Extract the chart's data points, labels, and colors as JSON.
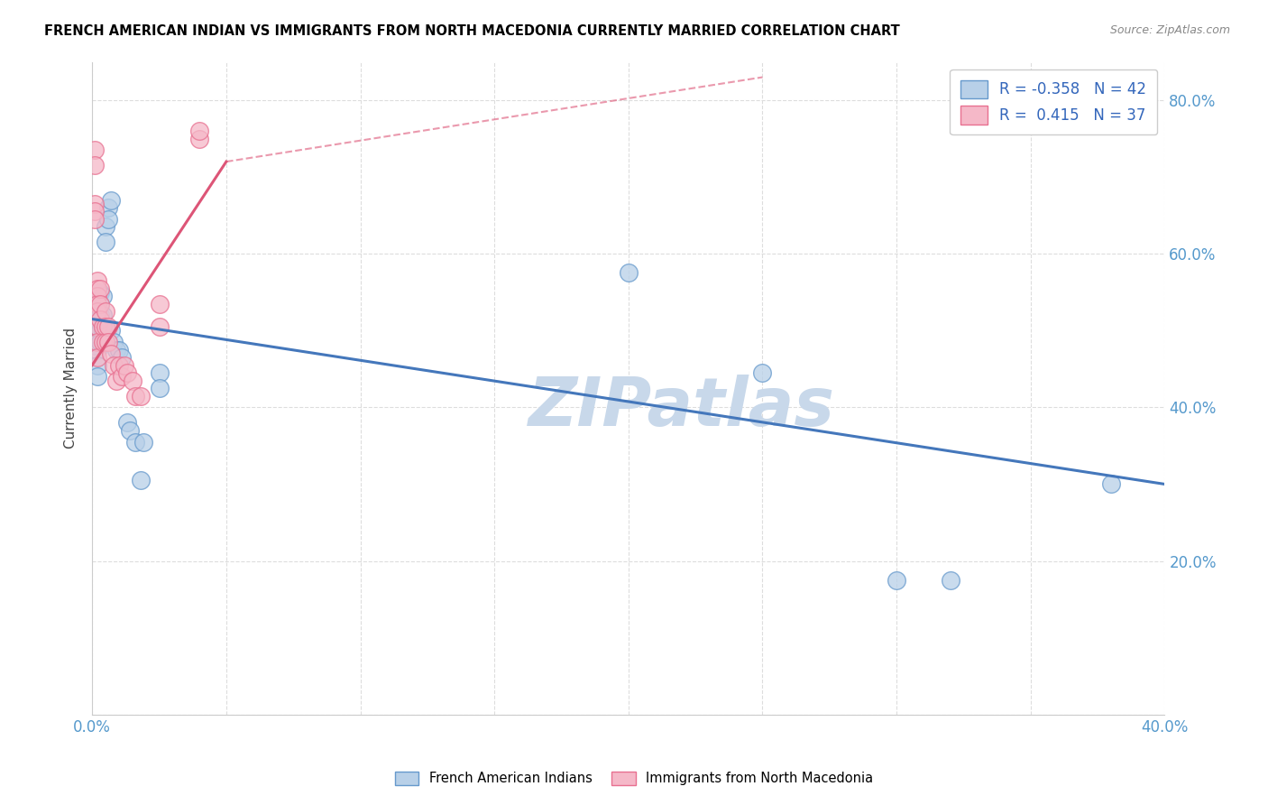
{
  "title": "FRENCH AMERICAN INDIAN VS IMMIGRANTS FROM NORTH MACEDONIA CURRENTLY MARRIED CORRELATION CHART",
  "source": "Source: ZipAtlas.com",
  "ylabel": "Currently Married",
  "xlim": [
    0.0,
    0.4
  ],
  "ylim": [
    0.0,
    0.85
  ],
  "y_ticks": [
    0.0,
    0.2,
    0.4,
    0.6,
    0.8
  ],
  "legend_r_blue": "-0.358",
  "legend_n_blue": "42",
  "legend_r_pink": "0.415",
  "legend_n_pink": "37",
  "blue_fill": "#b8d0e8",
  "pink_fill": "#f5b8c8",
  "blue_edge": "#6699cc",
  "pink_edge": "#e87090",
  "blue_line_color": "#4477bb",
  "pink_line_color": "#dd5577",
  "blue_scatter": [
    [
      0.001,
      0.545
    ],
    [
      0.001,
      0.515
    ],
    [
      0.001,
      0.5
    ],
    [
      0.001,
      0.48
    ],
    [
      0.002,
      0.545
    ],
    [
      0.002,
      0.535
    ],
    [
      0.002,
      0.52
    ],
    [
      0.002,
      0.505
    ],
    [
      0.002,
      0.495
    ],
    [
      0.002,
      0.475
    ],
    [
      0.002,
      0.455
    ],
    [
      0.002,
      0.44
    ],
    [
      0.003,
      0.55
    ],
    [
      0.003,
      0.535
    ],
    [
      0.003,
      0.52
    ],
    [
      0.003,
      0.5
    ],
    [
      0.003,
      0.485
    ],
    [
      0.004,
      0.545
    ],
    [
      0.004,
      0.52
    ],
    [
      0.004,
      0.5
    ],
    [
      0.005,
      0.635
    ],
    [
      0.005,
      0.615
    ],
    [
      0.006,
      0.66
    ],
    [
      0.006,
      0.645
    ],
    [
      0.007,
      0.67
    ],
    [
      0.007,
      0.5
    ],
    [
      0.008,
      0.485
    ],
    [
      0.009,
      0.475
    ],
    [
      0.01,
      0.475
    ],
    [
      0.011,
      0.465
    ],
    [
      0.013,
      0.38
    ],
    [
      0.014,
      0.37
    ],
    [
      0.016,
      0.355
    ],
    [
      0.018,
      0.305
    ],
    [
      0.019,
      0.355
    ],
    [
      0.025,
      0.445
    ],
    [
      0.025,
      0.425
    ],
    [
      0.2,
      0.575
    ],
    [
      0.25,
      0.445
    ],
    [
      0.3,
      0.175
    ],
    [
      0.32,
      0.175
    ],
    [
      0.38,
      0.3
    ]
  ],
  "pink_scatter": [
    [
      0.001,
      0.735
    ],
    [
      0.001,
      0.715
    ],
    [
      0.001,
      0.665
    ],
    [
      0.001,
      0.655
    ],
    [
      0.001,
      0.645
    ],
    [
      0.002,
      0.565
    ],
    [
      0.002,
      0.555
    ],
    [
      0.002,
      0.545
    ],
    [
      0.002,
      0.535
    ],
    [
      0.002,
      0.525
    ],
    [
      0.002,
      0.505
    ],
    [
      0.002,
      0.485
    ],
    [
      0.002,
      0.465
    ],
    [
      0.003,
      0.555
    ],
    [
      0.003,
      0.535
    ],
    [
      0.003,
      0.515
    ],
    [
      0.004,
      0.505
    ],
    [
      0.004,
      0.485
    ],
    [
      0.005,
      0.525
    ],
    [
      0.005,
      0.505
    ],
    [
      0.005,
      0.485
    ],
    [
      0.006,
      0.505
    ],
    [
      0.006,
      0.485
    ],
    [
      0.007,
      0.47
    ],
    [
      0.008,
      0.455
    ],
    [
      0.009,
      0.435
    ],
    [
      0.01,
      0.455
    ],
    [
      0.011,
      0.44
    ],
    [
      0.012,
      0.455
    ],
    [
      0.013,
      0.445
    ],
    [
      0.015,
      0.435
    ],
    [
      0.016,
      0.415
    ],
    [
      0.018,
      0.415
    ],
    [
      0.025,
      0.535
    ],
    [
      0.025,
      0.505
    ],
    [
      0.04,
      0.75
    ],
    [
      0.04,
      0.76
    ]
  ],
  "watermark": "ZIPatlas",
  "watermark_color": "#c8d8ea",
  "grid_color": "#dddddd",
  "background_color": "#ffffff"
}
